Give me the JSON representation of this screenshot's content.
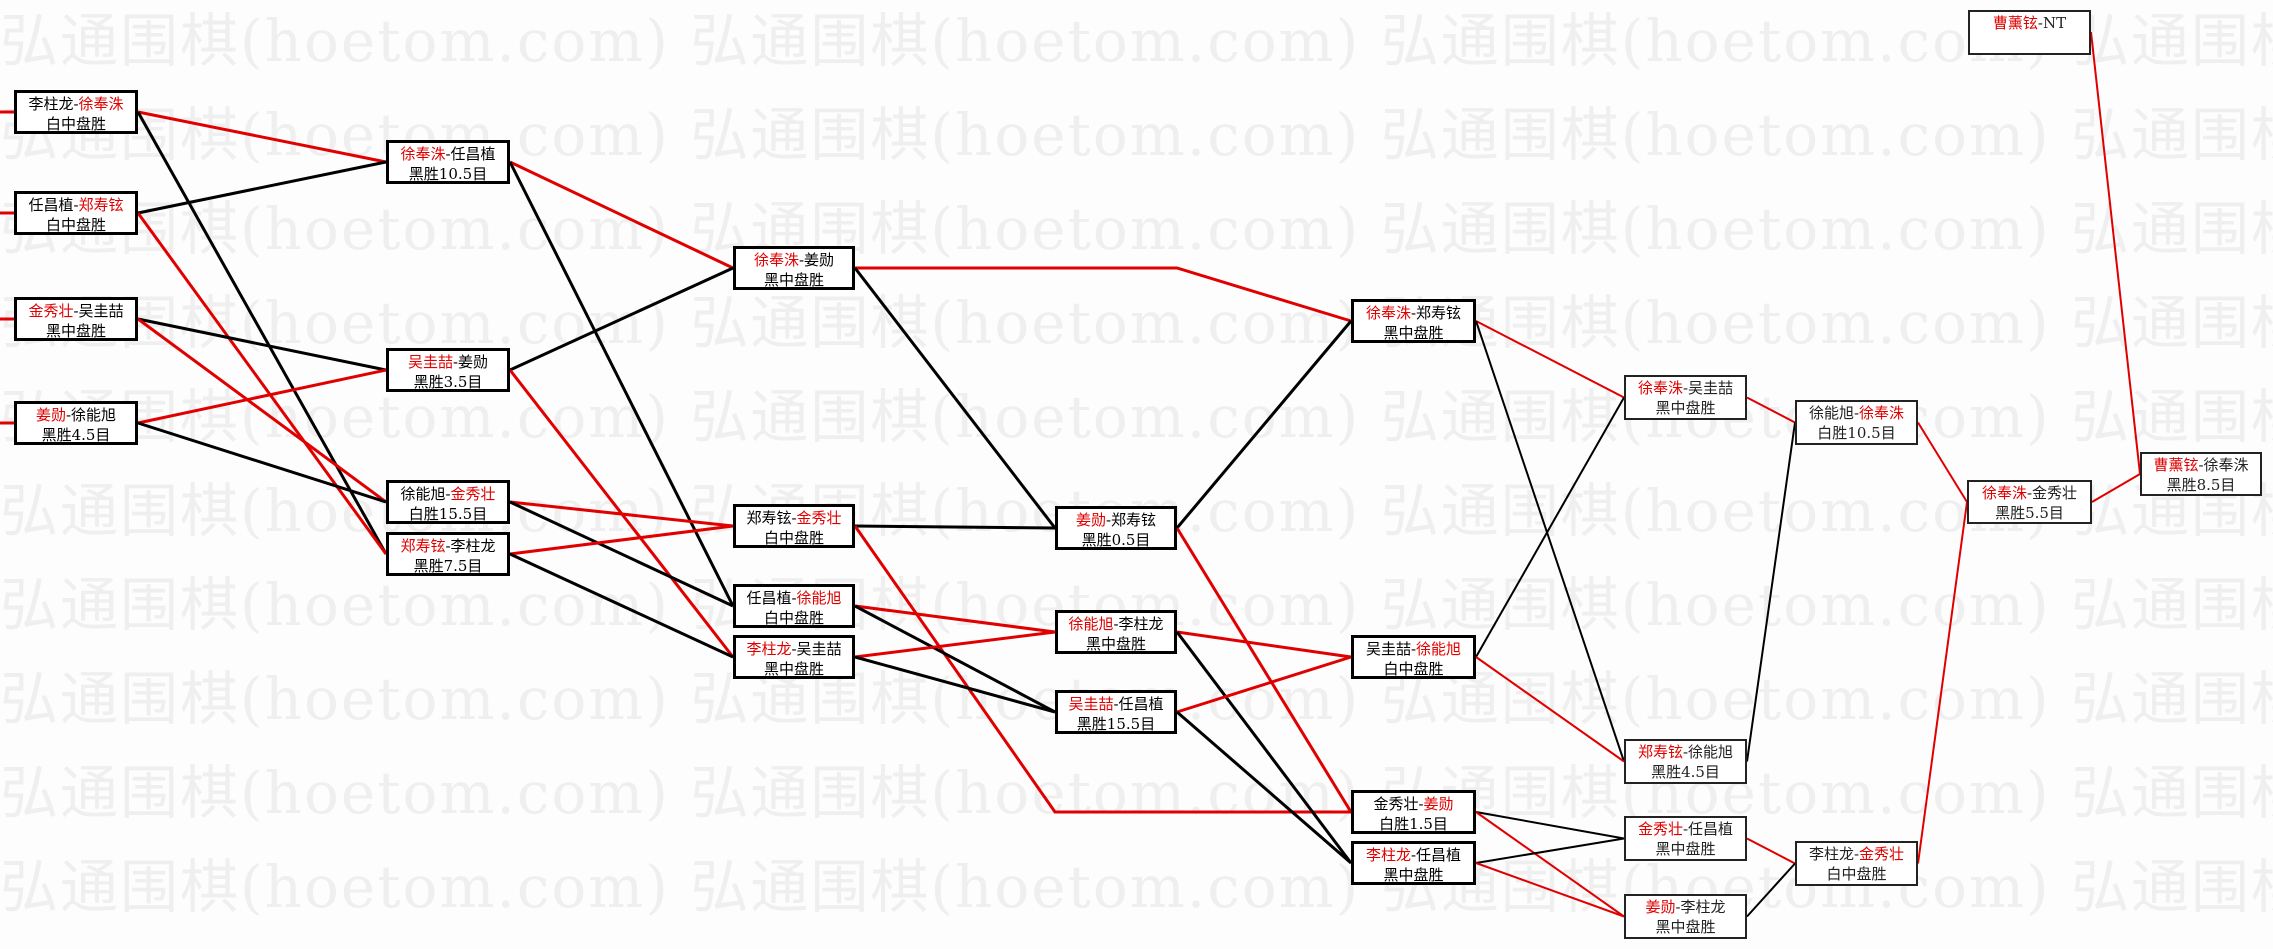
{
  "watermark": "弘通围棋(hoetom.com)",
  "colors": {
    "winner": "#e00000",
    "loser": "#000000",
    "box_border": "#000000"
  },
  "matches": [
    {
      "id": "B1",
      "p1": "李柱龙",
      "p2": "徐奉洙",
      "winner": 2,
      "result": "白中盘胜"
    },
    {
      "id": "B2",
      "p1": "任昌植",
      "p2": "郑寿铉",
      "winner": 2,
      "result": "白中盘胜"
    },
    {
      "id": "B3",
      "p1": "金秀壮",
      "p2": "吴圭喆",
      "winner": 1,
      "result": "黑中盘胜"
    },
    {
      "id": "B4",
      "p1": "姜勋",
      "p2": "徐能旭",
      "winner": 1,
      "result": "黑胜4.5目"
    },
    {
      "id": "C1",
      "p1": "徐奉洙",
      "p2": "任昌植",
      "winner": 1,
      "result": "黑胜10.5目"
    },
    {
      "id": "C2",
      "p1": "吴圭喆",
      "p2": "姜勋",
      "winner": 1,
      "result": "黑胜3.5目"
    },
    {
      "id": "C3",
      "p1": "徐能旭",
      "p2": "金秀壮",
      "winner": 2,
      "result": "白胜15.5目"
    },
    {
      "id": "C4",
      "p1": "郑寿铉",
      "p2": "李柱龙",
      "winner": 1,
      "result": "黑胜7.5目"
    },
    {
      "id": "D1",
      "p1": "徐奉洙",
      "p2": "姜勋",
      "winner": 1,
      "result": "黑中盘胜"
    },
    {
      "id": "D2",
      "p1": "郑寿铉",
      "p2": "金秀壮",
      "winner": 2,
      "result": "白中盘胜"
    },
    {
      "id": "D3",
      "p1": "任昌植",
      "p2": "徐能旭",
      "winner": 2,
      "result": "白中盘胜"
    },
    {
      "id": "D4",
      "p1": "李柱龙",
      "p2": "吴圭喆",
      "winner": 1,
      "result": "黑中盘胜"
    },
    {
      "id": "E1",
      "p1": "姜勋",
      "p2": "郑寿铉",
      "winner": 1,
      "result": "黑胜0.5目"
    },
    {
      "id": "E2",
      "p1": "徐能旭",
      "p2": "李柱龙",
      "winner": 1,
      "result": "黑中盘胜"
    },
    {
      "id": "E3",
      "p1": "吴圭喆",
      "p2": "任昌植",
      "winner": 1,
      "result": "黑胜15.5目"
    },
    {
      "id": "F1",
      "p1": "徐奉洙",
      "p2": "郑寿铉",
      "winner": 1,
      "result": "黑中盘胜"
    },
    {
      "id": "F2",
      "p1": "吴圭喆",
      "p2": "徐能旭",
      "winner": 2,
      "result": "白中盘胜"
    },
    {
      "id": "F3",
      "p1": "金秀壮",
      "p2": "姜勋",
      "winner": 2,
      "result": "白胜1.5目"
    },
    {
      "id": "F4",
      "p1": "李柱龙",
      "p2": "任昌植",
      "winner": 1,
      "result": "黑中盘胜"
    },
    {
      "id": "G1",
      "p1": "徐奉洙",
      "p2": "吴圭喆",
      "winner": 1,
      "result": "黑中盘胜"
    },
    {
      "id": "G2",
      "p1": "郑寿铉",
      "p2": "徐能旭",
      "winner": 1,
      "result": "黑胜4.5目"
    },
    {
      "id": "G3",
      "p1": "金秀壮",
      "p2": "任昌植",
      "winner": 1,
      "result": "黑中盘胜"
    },
    {
      "id": "G4",
      "p1": "姜勋",
      "p2": "李柱龙",
      "winner": 1,
      "result": "黑中盘胜"
    },
    {
      "id": "H1",
      "p1": "徐能旭",
      "p2": "徐奉洙",
      "winner": 2,
      "result": "白胜10.5目"
    },
    {
      "id": "H2",
      "p1": "李柱龙",
      "p2": "金秀壮",
      "winner": 2,
      "result": "白中盘胜"
    },
    {
      "id": "I1",
      "p1": "徐奉洙",
      "p2": "金秀壮",
      "winner": 1,
      "result": "黑胜5.5目"
    },
    {
      "id": "J1",
      "p1": "曹薰铉",
      "p2": "徐奉洙",
      "winner": 1,
      "result": "黑胜8.5目"
    },
    {
      "id": "T1",
      "p1": "曹薰铉",
      "p2": "NT",
      "winner": 1,
      "result": ""
    }
  ],
  "edges": [
    [
      "B1",
      "C1",
      "win"
    ],
    [
      "B1",
      "C4",
      "lose"
    ],
    [
      "B2",
      "C1",
      "lose"
    ],
    [
      "B2",
      "C4",
      "win"
    ],
    [
      "B3",
      "C2",
      "lose"
    ],
    [
      "B3",
      "C3",
      "win"
    ],
    [
      "B4",
      "C2",
      "win"
    ],
    [
      "B4",
      "C3",
      "lose"
    ],
    [
      "C1",
      "D1",
      "win"
    ],
    [
      "C1",
      "D3",
      "lose"
    ],
    [
      "C2",
      "D1",
      "lose"
    ],
    [
      "C2",
      "D4",
      "win"
    ],
    [
      "C3",
      "D2",
      "win"
    ],
    [
      "C3",
      "D3",
      "lose"
    ],
    [
      "C4",
      "D2",
      "win"
    ],
    [
      "C4",
      "D4",
      "lose"
    ],
    [
      "D1",
      "F1",
      "win"
    ],
    [
      "D1",
      "E1",
      "lose"
    ],
    [
      "D2",
      "E1",
      "lose"
    ],
    [
      "D2",
      "F3",
      "win"
    ],
    [
      "D3",
      "E2",
      "win"
    ],
    [
      "D3",
      "E3",
      "lose"
    ],
    [
      "D4",
      "E2",
      "win"
    ],
    [
      "D4",
      "E3",
      "lose"
    ],
    [
      "E1",
      "F1",
      "lose"
    ],
    [
      "E1",
      "F3",
      "win"
    ],
    [
      "E2",
      "F2",
      "win"
    ],
    [
      "E2",
      "F4",
      "lose"
    ],
    [
      "E3",
      "F2",
      "win"
    ],
    [
      "E3",
      "F4",
      "lose"
    ],
    [
      "F1",
      "G1",
      "win"
    ],
    [
      "F1",
      "G2",
      "lose"
    ],
    [
      "F2",
      "G1",
      "lose"
    ],
    [
      "F2",
      "G2",
      "win"
    ],
    [
      "F3",
      "G3",
      "lose"
    ],
    [
      "F3",
      "G4",
      "win"
    ],
    [
      "F4",
      "G3",
      "lose"
    ],
    [
      "F4",
      "G4",
      "win"
    ],
    [
      "G1",
      "H1",
      "win"
    ],
    [
      "G2",
      "H1",
      "lose"
    ],
    [
      "G3",
      "H2",
      "win"
    ],
    [
      "G4",
      "H2",
      "lose"
    ],
    [
      "H1",
      "I1",
      "win"
    ],
    [
      "H2",
      "I1",
      "win"
    ],
    [
      "I1",
      "J1",
      "win"
    ],
    [
      "T1",
      "J1",
      "win"
    ]
  ]
}
